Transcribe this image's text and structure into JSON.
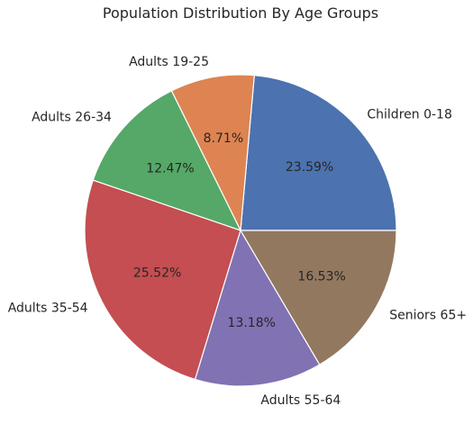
{
  "chart_data": {
    "type": "pie",
    "title": "Population Distribution By Age Groups",
    "categories": [
      "Children 0-18",
      "Adults 19-25",
      "Adults 26-34",
      "Adults 35-54",
      "Adults 55-64",
      "Seniors 65+"
    ],
    "values": [
      23.59,
      8.71,
      12.47,
      25.52,
      13.18,
      16.53
    ],
    "value_labels": [
      "23.59%",
      "8.71%",
      "12.47%",
      "25.52%",
      "13.18%",
      "16.53%"
    ],
    "colors": [
      "#4c72b0",
      "#dd8452",
      "#55a868",
      "#c44e52",
      "#8172b3",
      "#937860"
    ],
    "start_angle_deg": 0,
    "direction": "counterclockwise",
    "legend": "none"
  }
}
